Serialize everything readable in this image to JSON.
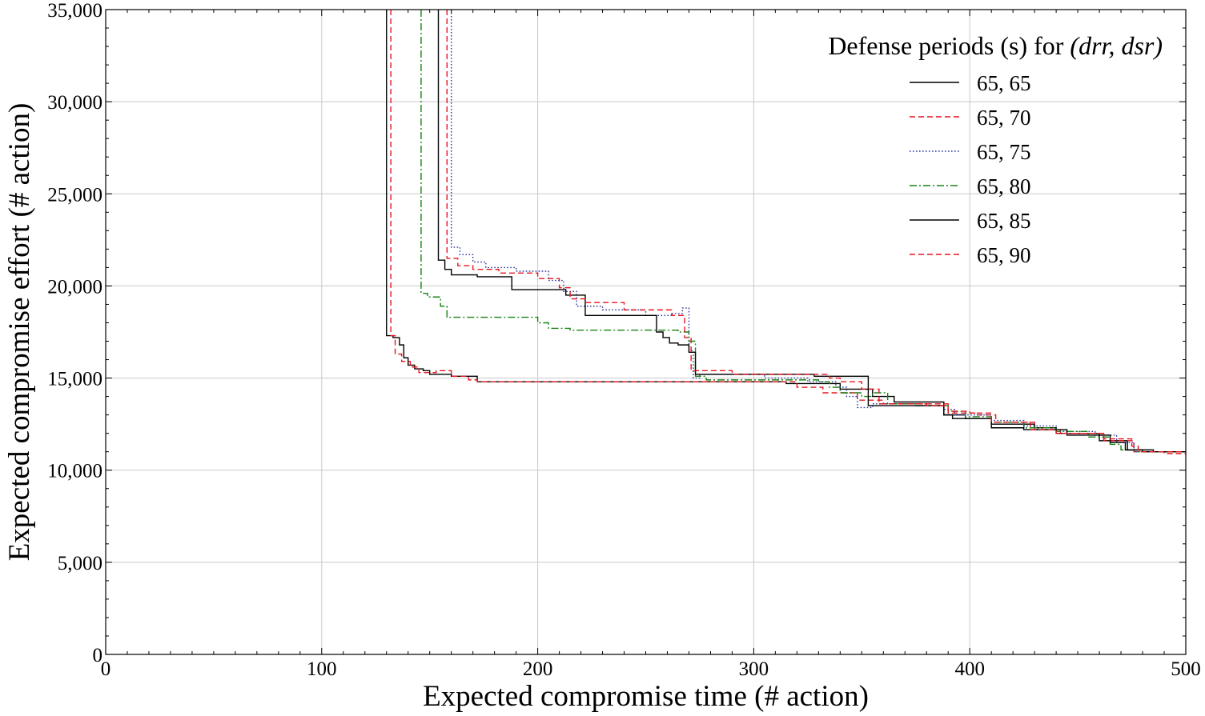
{
  "chart_data": {
    "type": "line",
    "title": "",
    "xlabel": "Expected compromise time (# action)",
    "ylabel": "Expected compromise effort (# action)",
    "xlim": [
      0,
      500
    ],
    "ylim": [
      0,
      35000
    ],
    "x_ticks": [
      0,
      100,
      200,
      300,
      400,
      500
    ],
    "x_tick_labels": [
      "0",
      "100",
      "200",
      "300",
      "400",
      "500"
    ],
    "y_ticks": [
      0,
      5000,
      10000,
      15000,
      20000,
      25000,
      30000,
      35000
    ],
    "y_tick_labels": [
      "0",
      "5,000",
      "10,000",
      "15,000",
      "20,000",
      "25,000",
      "30,000",
      "35,000"
    ],
    "grid": true,
    "legend": {
      "title_prefix": "Defense periods (s) for ",
      "title_math": "(drr, dsr)",
      "placement": "top-right"
    },
    "series": [
      {
        "name": "65, 65",
        "color": "#000000",
        "dash": "solid",
        "points": [
          [
            130,
            35000
          ],
          [
            130,
            17300
          ],
          [
            133,
            17300
          ],
          [
            133,
            17200
          ],
          [
            136,
            17200
          ],
          [
            136,
            16800
          ],
          [
            138,
            16800
          ],
          [
            138,
            16100
          ],
          [
            140,
            16100
          ],
          [
            140,
            15700
          ],
          [
            143,
            15700
          ],
          [
            143,
            15500
          ],
          [
            147,
            15500
          ],
          [
            147,
            15400
          ],
          [
            150,
            15400
          ],
          [
            150,
            15200
          ],
          [
            160,
            15200
          ],
          [
            160,
            15100
          ],
          [
            172,
            15100
          ],
          [
            172,
            14800
          ],
          [
            315,
            14800
          ],
          [
            315,
            14700
          ],
          [
            340,
            14700
          ],
          [
            340,
            14400
          ],
          [
            355,
            14400
          ],
          [
            355,
            14000
          ],
          [
            365,
            14000
          ],
          [
            365,
            13700
          ],
          [
            388,
            13700
          ],
          [
            388,
            13000
          ],
          [
            398,
            13000
          ],
          [
            398,
            12800
          ],
          [
            410,
            12800
          ],
          [
            410,
            12500
          ],
          [
            430,
            12500
          ],
          [
            430,
            12300
          ],
          [
            440,
            12300
          ],
          [
            440,
            12000
          ],
          [
            460,
            12000
          ],
          [
            460,
            11600
          ],
          [
            473,
            11600
          ],
          [
            473,
            11100
          ],
          [
            485,
            11100
          ],
          [
            485,
            11000
          ],
          [
            500,
            11000
          ]
        ]
      },
      {
        "name": "65, 70",
        "color": "#e8141e",
        "dash": "dashed",
        "points": [
          [
            132,
            35000
          ],
          [
            132,
            17300
          ],
          [
            134,
            17300
          ],
          [
            134,
            16300
          ],
          [
            137,
            16300
          ],
          [
            137,
            15900
          ],
          [
            141,
            15900
          ],
          [
            141,
            15600
          ],
          [
            145,
            15600
          ],
          [
            145,
            15300
          ],
          [
            153,
            15300
          ],
          [
            153,
            15400
          ],
          [
            160,
            15400
          ],
          [
            160,
            15100
          ],
          [
            168,
            15100
          ],
          [
            168,
            14900
          ],
          [
            172,
            14900
          ],
          [
            172,
            14800
          ],
          [
            320,
            14800
          ],
          [
            320,
            14500
          ],
          [
            332,
            14500
          ],
          [
            332,
            14200
          ],
          [
            348,
            14200
          ],
          [
            348,
            13800
          ],
          [
            360,
            13800
          ],
          [
            360,
            13600
          ],
          [
            390,
            13600
          ],
          [
            390,
            13100
          ],
          [
            403,
            13100
          ],
          [
            403,
            13000
          ],
          [
            412,
            13000
          ],
          [
            412,
            12600
          ],
          [
            430,
            12600
          ],
          [
            430,
            12200
          ],
          [
            442,
            12200
          ],
          [
            442,
            12000
          ],
          [
            462,
            12000
          ],
          [
            462,
            11600
          ],
          [
            476,
            11600
          ],
          [
            476,
            11000
          ],
          [
            490,
            11000
          ],
          [
            490,
            10900
          ],
          [
            500,
            10900
          ]
        ]
      },
      {
        "name": "65, 75",
        "color": "#2b3a9e",
        "dash": "dotted",
        "points": [
          [
            160,
            35000
          ],
          [
            160,
            22100
          ],
          [
            164,
            22100
          ],
          [
            164,
            21700
          ],
          [
            170,
            21700
          ],
          [
            170,
            21300
          ],
          [
            176,
            21300
          ],
          [
            176,
            21000
          ],
          [
            190,
            21000
          ],
          [
            190,
            20800
          ],
          [
            205,
            20800
          ],
          [
            205,
            20300
          ],
          [
            212,
            20300
          ],
          [
            212,
            19700
          ],
          [
            218,
            19700
          ],
          [
            218,
            18900
          ],
          [
            230,
            18900
          ],
          [
            230,
            18700
          ],
          [
            250,
            18700
          ],
          [
            250,
            18400
          ],
          [
            262,
            18400
          ],
          [
            262,
            18500
          ],
          [
            267,
            18500
          ],
          [
            267,
            18800
          ],
          [
            270,
            18800
          ],
          [
            270,
            16500
          ],
          [
            272,
            16500
          ],
          [
            272,
            15000
          ],
          [
            275,
            15000
          ],
          [
            275,
            15200
          ],
          [
            305,
            15200
          ],
          [
            305,
            15000
          ],
          [
            325,
            15000
          ],
          [
            325,
            14800
          ],
          [
            338,
            14800
          ],
          [
            338,
            14500
          ],
          [
            343,
            14500
          ],
          [
            343,
            14000
          ],
          [
            348,
            14000
          ],
          [
            348,
            13400
          ],
          [
            355,
            13400
          ],
          [
            355,
            13600
          ],
          [
            375,
            13600
          ],
          [
            375,
            13500
          ],
          [
            388,
            13500
          ],
          [
            388,
            13300
          ],
          [
            393,
            13300
          ],
          [
            393,
            13000
          ],
          [
            410,
            13000
          ],
          [
            410,
            12700
          ],
          [
            425,
            12700
          ],
          [
            425,
            12400
          ],
          [
            440,
            12400
          ],
          [
            440,
            12100
          ],
          [
            458,
            12100
          ],
          [
            458,
            11900
          ],
          [
            468,
            11900
          ],
          [
            468,
            11500
          ],
          [
            476,
            11500
          ],
          [
            476,
            11000
          ],
          [
            500,
            11000
          ]
        ]
      },
      {
        "name": "65, 80",
        "color": "#198214",
        "dash": "dashdot",
        "points": [
          [
            146,
            35000
          ],
          [
            146,
            19600
          ],
          [
            149,
            19600
          ],
          [
            149,
            19400
          ],
          [
            155,
            19400
          ],
          [
            155,
            18900
          ],
          [
            158,
            18900
          ],
          [
            158,
            18300
          ],
          [
            200,
            18300
          ],
          [
            200,
            18000
          ],
          [
            205,
            18000
          ],
          [
            205,
            17700
          ],
          [
            215,
            17700
          ],
          [
            215,
            17600
          ],
          [
            265,
            17600
          ],
          [
            265,
            17500
          ],
          [
            270,
            17500
          ],
          [
            270,
            17000
          ],
          [
            273,
            17000
          ],
          [
            273,
            15100
          ],
          [
            278,
            15100
          ],
          [
            278,
            14900
          ],
          [
            330,
            14900
          ],
          [
            330,
            14800
          ],
          [
            335,
            14800
          ],
          [
            335,
            14500
          ],
          [
            340,
            14500
          ],
          [
            340,
            14200
          ],
          [
            350,
            14200
          ],
          [
            350,
            14000
          ],
          [
            355,
            14000
          ],
          [
            355,
            14200
          ],
          [
            362,
            14200
          ],
          [
            362,
            13600
          ],
          [
            375,
            13600
          ],
          [
            375,
            13500
          ],
          [
            390,
            13500
          ],
          [
            390,
            13200
          ],
          [
            398,
            13200
          ],
          [
            398,
            12900
          ],
          [
            410,
            12900
          ],
          [
            410,
            12600
          ],
          [
            425,
            12600
          ],
          [
            425,
            12300
          ],
          [
            440,
            12300
          ],
          [
            440,
            12100
          ],
          [
            455,
            12100
          ],
          [
            455,
            11800
          ],
          [
            465,
            11800
          ],
          [
            465,
            11400
          ],
          [
            470,
            11400
          ],
          [
            470,
            11100
          ],
          [
            478,
            11100
          ],
          [
            478,
            11000
          ],
          [
            500,
            11000
          ]
        ]
      },
      {
        "name": "65, 85",
        "color": "#000000",
        "dash": "solid",
        "points": [
          [
            154,
            35000
          ],
          [
            154,
            21400
          ],
          [
            157,
            21400
          ],
          [
            157,
            20900
          ],
          [
            160,
            20900
          ],
          [
            160,
            20600
          ],
          [
            172,
            20600
          ],
          [
            172,
            20500
          ],
          [
            188,
            20500
          ],
          [
            188,
            19800
          ],
          [
            213,
            19800
          ],
          [
            213,
            19500
          ],
          [
            222,
            19500
          ],
          [
            222,
            18400
          ],
          [
            255,
            18400
          ],
          [
            255,
            17500
          ],
          [
            258,
            17500
          ],
          [
            258,
            17200
          ],
          [
            261,
            17200
          ],
          [
            261,
            16900
          ],
          [
            265,
            16900
          ],
          [
            265,
            16800
          ],
          [
            270,
            16800
          ],
          [
            270,
            16400
          ],
          [
            273,
            16400
          ],
          [
            273,
            15200
          ],
          [
            328,
            15200
          ],
          [
            328,
            15100
          ],
          [
            353,
            15100
          ],
          [
            353,
            13500
          ],
          [
            388,
            13500
          ],
          [
            388,
            13000
          ],
          [
            392,
            13000
          ],
          [
            392,
            12800
          ],
          [
            410,
            12800
          ],
          [
            410,
            12300
          ],
          [
            425,
            12300
          ],
          [
            425,
            12200
          ],
          [
            445,
            12200
          ],
          [
            445,
            11900
          ],
          [
            465,
            11900
          ],
          [
            465,
            11500
          ],
          [
            472,
            11500
          ],
          [
            472,
            11100
          ],
          [
            480,
            11100
          ],
          [
            480,
            11000
          ],
          [
            500,
            11000
          ]
        ]
      },
      {
        "name": "65, 90",
        "color": "#e8141e",
        "dash": "dashed",
        "points": [
          [
            158,
            35000
          ],
          [
            158,
            21500
          ],
          [
            163,
            21500
          ],
          [
            163,
            21100
          ],
          [
            170,
            21100
          ],
          [
            170,
            20900
          ],
          [
            182,
            20900
          ],
          [
            182,
            20700
          ],
          [
            200,
            20700
          ],
          [
            200,
            20400
          ],
          [
            210,
            20400
          ],
          [
            210,
            19900
          ],
          [
            215,
            19900
          ],
          [
            215,
            19300
          ],
          [
            222,
            19300
          ],
          [
            222,
            19100
          ],
          [
            240,
            19100
          ],
          [
            240,
            18700
          ],
          [
            262,
            18700
          ],
          [
            262,
            18400
          ],
          [
            268,
            18400
          ],
          [
            268,
            17200
          ],
          [
            271,
            17200
          ],
          [
            271,
            15400
          ],
          [
            290,
            15400
          ],
          [
            290,
            15200
          ],
          [
            335,
            15200
          ],
          [
            335,
            15000
          ],
          [
            340,
            15000
          ],
          [
            340,
            14800
          ],
          [
            350,
            14800
          ],
          [
            350,
            14400
          ],
          [
            358,
            14400
          ],
          [
            358,
            13600
          ],
          [
            380,
            13600
          ],
          [
            380,
            13500
          ],
          [
            390,
            13500
          ],
          [
            390,
            13200
          ],
          [
            400,
            13200
          ],
          [
            400,
            13100
          ],
          [
            410,
            13100
          ],
          [
            410,
            12600
          ],
          [
            428,
            12600
          ],
          [
            428,
            12200
          ],
          [
            440,
            12200
          ],
          [
            440,
            12000
          ],
          [
            462,
            12000
          ],
          [
            462,
            11700
          ],
          [
            475,
            11700
          ],
          [
            475,
            11300
          ],
          [
            478,
            11300
          ],
          [
            478,
            11000
          ],
          [
            500,
            11000
          ]
        ]
      }
    ]
  }
}
